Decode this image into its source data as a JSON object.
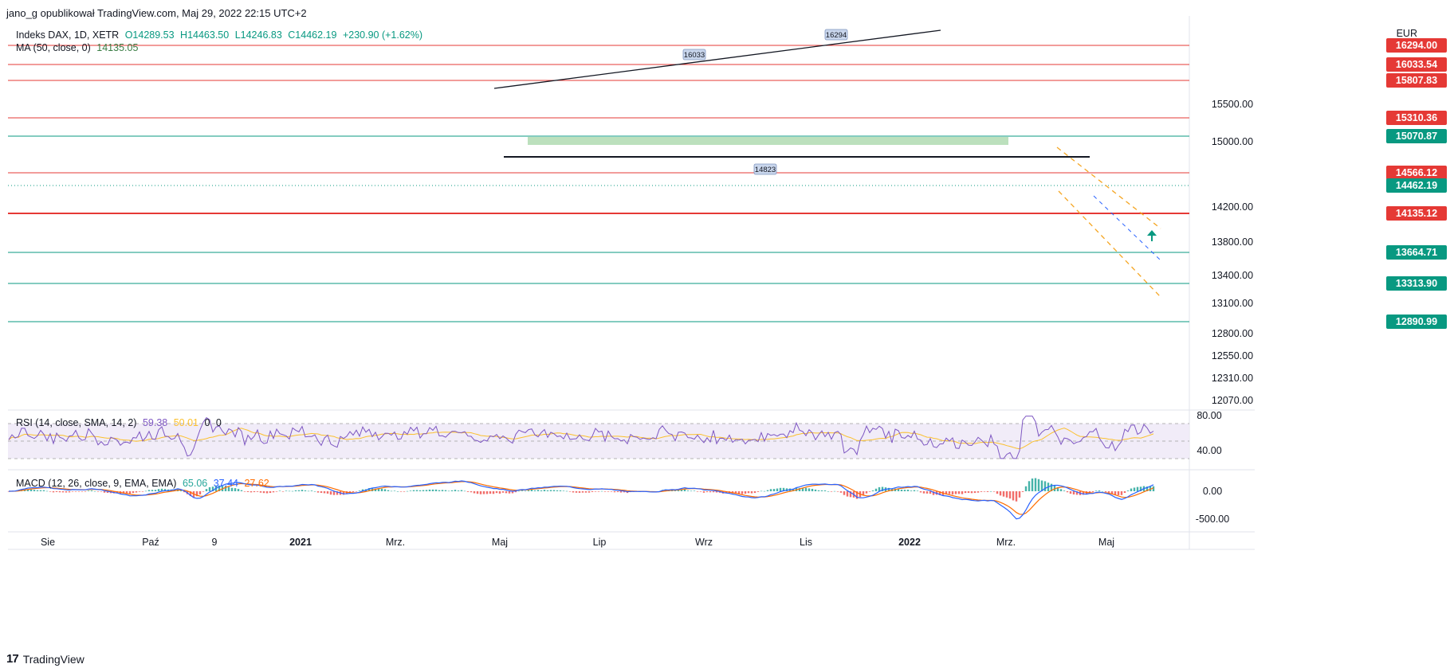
{
  "caption": "jano_g opublikował TradingView.com, Maj 29, 2022 22:15 UTC+2",
  "footer_brand": "TradingView",
  "footer_logo": "17",
  "currency": "EUR",
  "legend": {
    "symbol": "Indeks DAX, 1D, XETR",
    "open": "O14289.53",
    "high": "H14463.50",
    "low": "L14246.83",
    "close": "C14462.19",
    "change": "+230.90 (+1.62%)",
    "ma_label": "MA (50, close, 0)",
    "ma_value": "14135.05",
    "rsi_label": "RSI (14, close, SMA, 14, 2)",
    "rsi_value": "59.38",
    "rsi_ma": "50.01",
    "rsi_z1": "0",
    "rsi_z2": "0",
    "macd_label": "MACD (12, 26, close, 9, EMA, EMA)",
    "macd_value": "65.06",
    "macd_signal": "37.44",
    "macd_hist": "27.62"
  },
  "colors": {
    "up": "#26a69a",
    "down": "#ef5350",
    "ma": "#3a7d44",
    "red_line": "#e53935",
    "green_line": "#089981",
    "rsi": "#7e57c2",
    "rsi_ma": "#fbc02d",
    "macd": "#2962ff",
    "signal": "#ff6d00"
  },
  "chart_data": {
    "type": "candlestick",
    "title": "",
    "y_ticks": [
      15500.0,
      15000.0,
      14200.0,
      13800.0,
      13400.0,
      13100.0,
      12800.0,
      12550.0,
      12310.0,
      12070.0
    ],
    "y_tick_labels": [
      "15500.00",
      "15000.00",
      "14200.00",
      "13800.00",
      "13400.00",
      "13100.00",
      "12800.00",
      "12550.00",
      "12310.00",
      "12070.00"
    ],
    "x_labels": [
      "Sie",
      "Paź",
      "9",
      "2021",
      "Mrz.",
      "Maj",
      "Lip",
      "Wrz",
      "Lis",
      "2022",
      "Mrz.",
      "Maj"
    ],
    "horizontal_levels": [
      {
        "label": "16294.00",
        "color": "red"
      },
      {
        "label": "16033.54",
        "color": "red"
      },
      {
        "label": "15807.83",
        "color": "red"
      },
      {
        "label": "15310.36",
        "color": "red"
      },
      {
        "label": "15070.87",
        "color": "green"
      },
      {
        "label": "14566.12",
        "color": "red"
      },
      {
        "label": "14462.19",
        "color": "green",
        "current": true
      },
      {
        "label": "14135.12",
        "color": "red"
      },
      {
        "label": "13664.71",
        "color": "green"
      },
      {
        "label": "13313.90",
        "color": "green"
      },
      {
        "label": "12890.99",
        "color": "green"
      }
    ],
    "annotations": [
      "16033",
      "16294",
      "14823"
    ],
    "rsi_ticks": [
      "80.00",
      "40.00"
    ],
    "macd_ticks": [
      "0.00",
      "-500.00"
    ]
  }
}
